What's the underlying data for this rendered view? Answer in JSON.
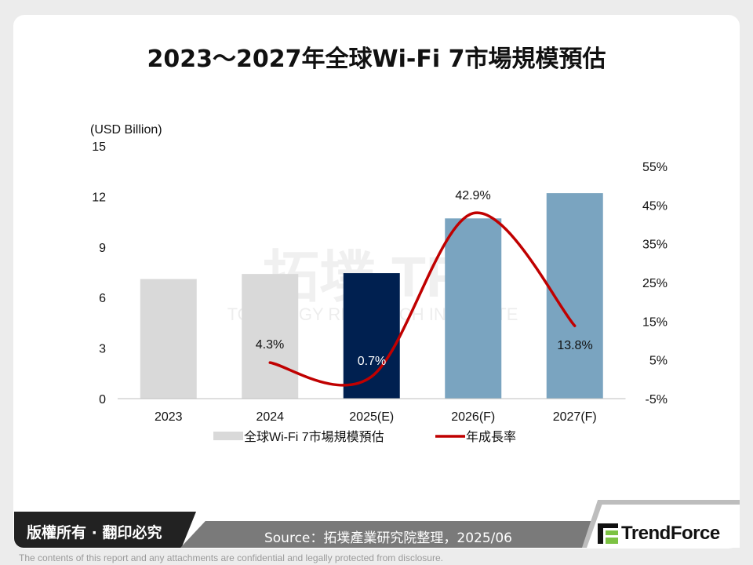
{
  "title": "2023～2027年全球Wi-Fi 7市場規模預估",
  "chart_data": {
    "type": "bar+line",
    "categories": [
      "2023",
      "2024",
      "2025(E)",
      "2026(F)",
      "2027(F)"
    ],
    "series": [
      {
        "name": "全球Wi-Fi 7市場規模預估",
        "type": "bar",
        "axis": "left",
        "values": [
          7.1,
          7.4,
          7.45,
          10.7,
          12.2
        ]
      },
      {
        "name": "年成長率",
        "type": "line",
        "axis": "right",
        "values": [
          null,
          4.3,
          0.7,
          42.9,
          13.8
        ],
        "labels": [
          "",
          "4.3%",
          "0.7%",
          "42.9%",
          "13.8%"
        ]
      }
    ],
    "bar_colors": [
      "#d9d9d9",
      "#d9d9d9",
      "#002050",
      "#7aa4c0",
      "#7aa4c0"
    ],
    "line_color": "#c00000",
    "y_left": {
      "label": "(USD Billion)",
      "range": [
        0,
        15
      ],
      "ticks": [
        "0",
        "3",
        "6",
        "9",
        "12",
        "15"
      ]
    },
    "y_right": {
      "range": [
        -5,
        55
      ],
      "ticks": [
        "-5%",
        "5%",
        "15%",
        "25%",
        "35%",
        "45%",
        "55%"
      ]
    },
    "grid": false,
    "legend_placement": "bottom"
  },
  "watermark": {
    "text": "拓墣 TRi",
    "subtext": "TOPOLOGY RESEARCH INSTITUTE"
  },
  "footer": {
    "copyright": "版權所有 · 翻印必究",
    "source": "Source：拓墣產業研究院整理，2025/06",
    "brand": "TrendForce",
    "disclaimer": "The contents of this report and any attachments are confidential and legally protected from disclosure."
  }
}
